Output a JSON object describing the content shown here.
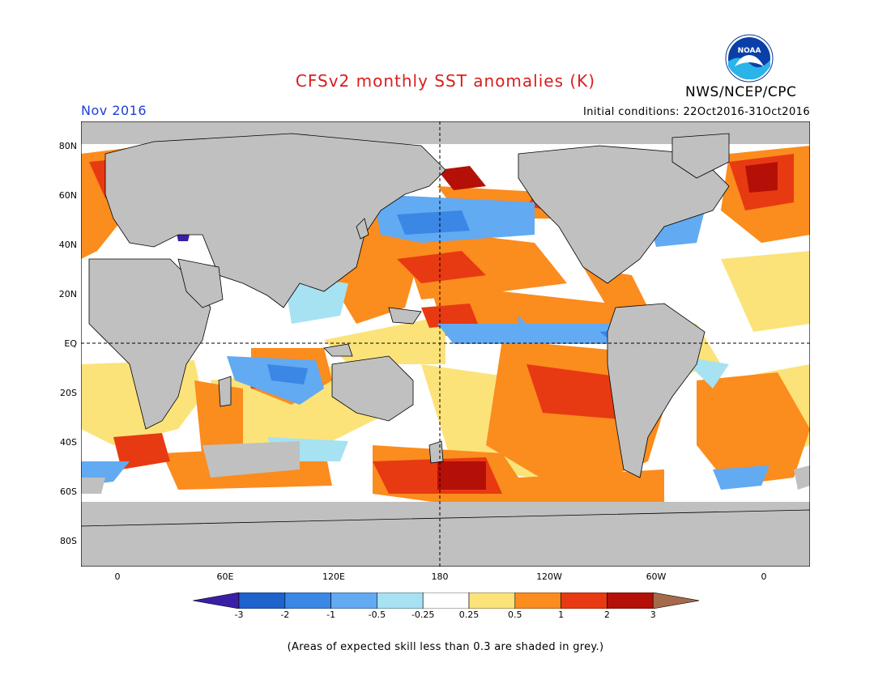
{
  "header": {
    "title": "CFSv2 monthly SST anomalies (K)",
    "agency": "NWS/NCEP/CPC",
    "logo_text": "NOAA",
    "month": "Nov 2016",
    "initial_conditions": "Initial conditions: 22Oct2016-31Oct2016"
  },
  "axes": {
    "lat_labels": [
      "80N",
      "60N",
      "40N",
      "20N",
      "EQ",
      "20S",
      "40S",
      "60S",
      "80S"
    ],
    "lon_labels": [
      "0",
      "60E",
      "120E",
      "180",
      "120W",
      "60W",
      "0"
    ]
  },
  "colorbar": {
    "labels": [
      "-3",
      "-2",
      "-1",
      "-0.5",
      "-0.25",
      "0.25",
      "0.5",
      "1",
      "2",
      "3"
    ],
    "colors": [
      "#3a1fa6",
      "#1e62cc",
      "#3a87e6",
      "#62aaf2",
      "#a6e2f2",
      "#ffffff",
      "#fbe37a",
      "#fb8c1e",
      "#e83a12",
      "#b41008",
      "#a56a4a"
    ]
  },
  "colors": {
    "land": "#c0c0c0",
    "skill_mask": "#c0c0c0",
    "title": "#d81e1e",
    "month": "#1f3fd6"
  },
  "footnote": "(Areas of expected skill less than 0.3 are shaded in grey.)"
}
